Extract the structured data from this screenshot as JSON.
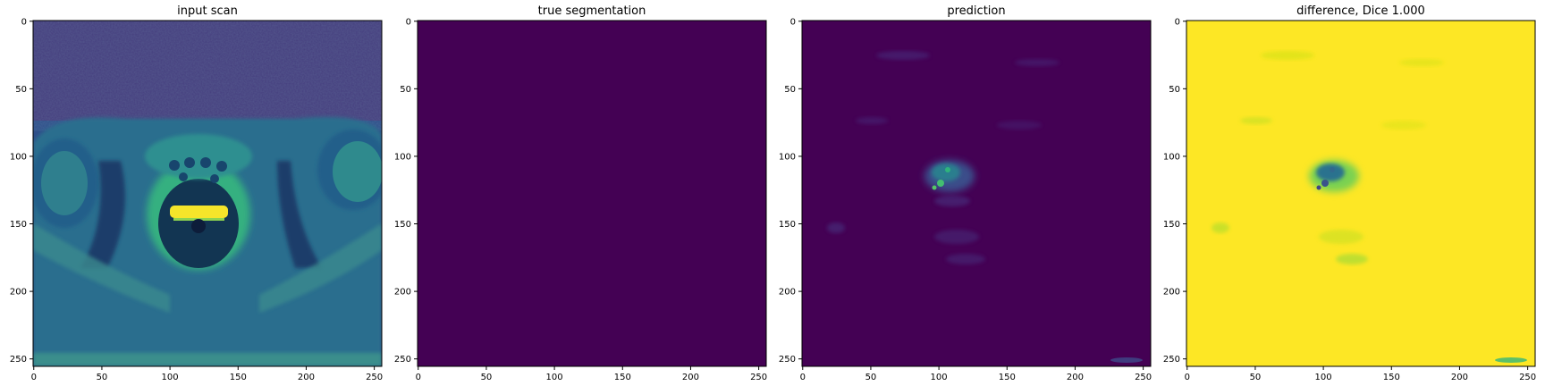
{
  "chart_data": [
    {
      "type": "heatmap",
      "title": "input scan",
      "xlabel": "",
      "ylabel": "",
      "xlim": [
        0,
        255
      ],
      "ylim": [
        255,
        0
      ],
      "xticks": [
        0,
        50,
        100,
        150,
        200,
        250
      ],
      "yticks": [
        0,
        50,
        100,
        150,
        200,
        250
      ],
      "colormap": "viridis",
      "content": "axial pelvic MRI slice"
    },
    {
      "type": "heatmap",
      "title": "true segmentation",
      "xlabel": "",
      "ylabel": "",
      "xlim": [
        0,
        255
      ],
      "ylim": [
        255,
        0
      ],
      "xticks": [
        0,
        50,
        100,
        150,
        200,
        250
      ],
      "yticks": [
        0,
        50,
        100,
        150,
        200,
        250
      ],
      "colormap": "viridis",
      "content": "uniform value (empty mask)"
    },
    {
      "type": "heatmap",
      "title": "prediction",
      "xlabel": "",
      "ylabel": "",
      "xlim": [
        0,
        255
      ],
      "ylim": [
        255,
        0
      ],
      "xticks": [
        0,
        50,
        100,
        150,
        200,
        250
      ],
      "yticks": [
        0,
        50,
        100,
        150,
        200,
        250
      ],
      "colormap": "viridis",
      "content": "mostly low values, small bright blob near x≈115, y≈115"
    },
    {
      "type": "heatmap",
      "title": "difference, Dice 1.000",
      "xlabel": "",
      "ylabel": "",
      "xlim": [
        0,
        255
      ],
      "ylim": [
        255,
        0
      ],
      "xticks": [
        0,
        50,
        100,
        150,
        200,
        250
      ],
      "yticks": [
        0,
        50,
        100,
        150,
        200,
        250
      ],
      "colormap": "viridis",
      "content": "mostly high values, dark blob near x≈115, y≈115"
    }
  ],
  "colors": {
    "viridis_low": "#440154",
    "viridis_lowmid": "#3b528b",
    "viridis_mid": "#21918c",
    "viridis_highmid": "#5ec962",
    "viridis_high": "#fde725",
    "background": "#ffffff",
    "axis": "#000000"
  }
}
